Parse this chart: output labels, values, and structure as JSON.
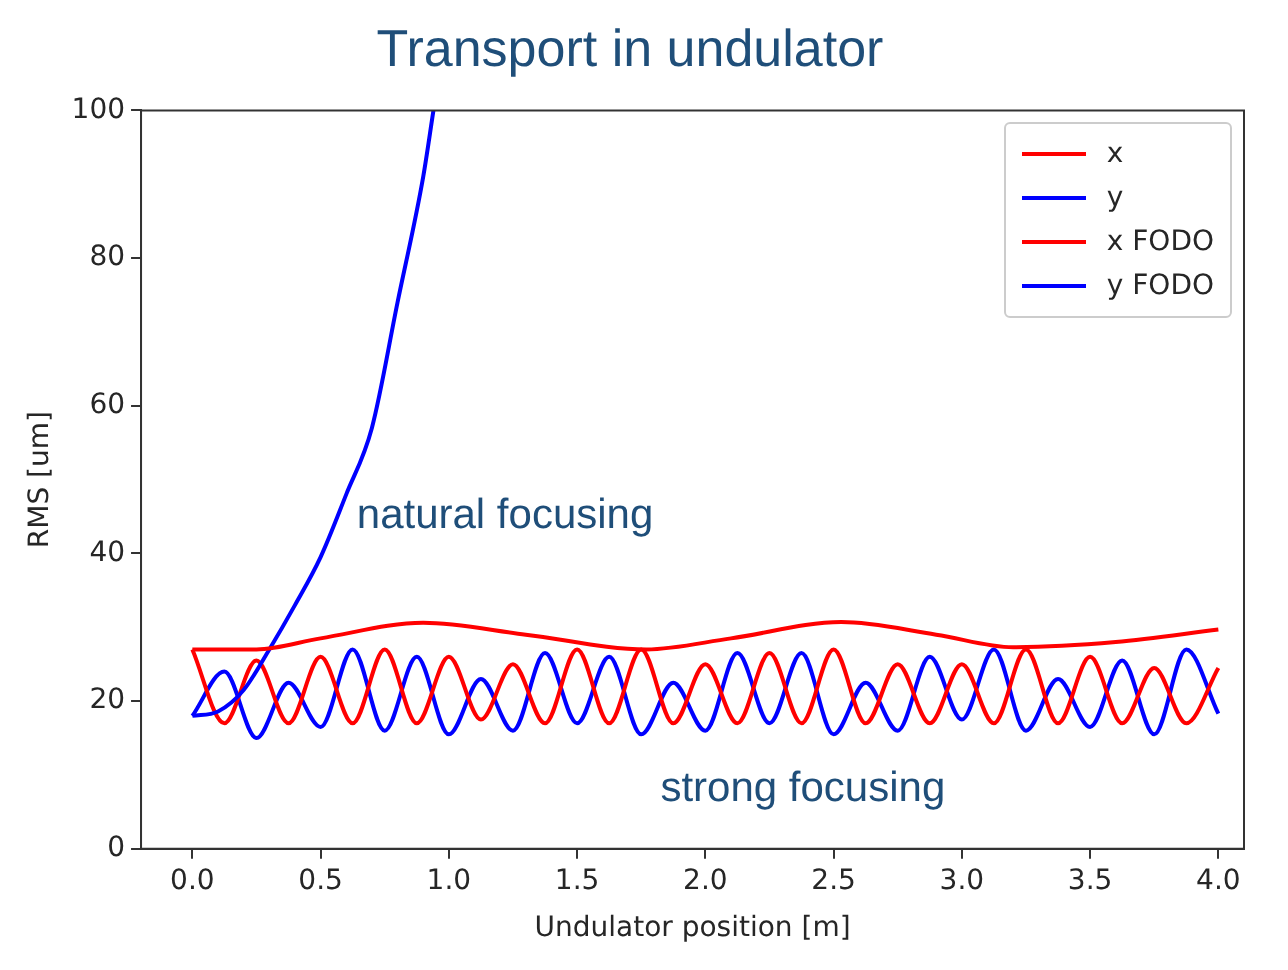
{
  "chart_data": {
    "type": "line",
    "title": "Transport in undulator",
    "xlabel": "Undulator position [m]",
    "ylabel": "RMS [um]",
    "xlim": [
      -0.2,
      4.1
    ],
    "xticks": [
      {
        "value": 0,
        "label": "0.0"
      },
      {
        "value": 0.5,
        "label": "0.5"
      },
      {
        "value": 1,
        "label": "1.0"
      },
      {
        "value": 1.5,
        "label": "1.5"
      },
      {
        "value": 2,
        "label": "2.0"
      },
      {
        "value": 2.5,
        "label": "2.5"
      },
      {
        "value": 3,
        "label": "3.0"
      },
      {
        "value": 3.5,
        "label": "3.5"
      },
      {
        "value": 4,
        "label": "4.0"
      }
    ],
    "ylim": [
      0,
      100
    ],
    "yticks": [
      0,
      20,
      40,
      60,
      80,
      100
    ],
    "grid": false,
    "legend": "top right",
    "marker": "none",
    "line_style": "solid",
    "annotations": [
      "natural focusing",
      "strong focusing"
    ],
    "series": [
      {
        "name": "x",
        "color": "#ff0000",
        "x": [
          0,
          0.25,
          0.5,
          0.9,
          1.3,
          1.77,
          2.1,
          2.53,
          2.9,
          3.2,
          3.6,
          4.0
        ],
        "values": [
          27,
          27,
          28.5,
          30.6,
          29,
          27,
          28.5,
          30.7,
          29,
          27.3,
          28,
          29.7
        ]
      },
      {
        "name": "y",
        "color": "#0000ff",
        "x": [
          0,
          0.1,
          0.2,
          0.3,
          0.4,
          0.5,
          0.6,
          0.7,
          0.8,
          0.9,
          0.94
        ],
        "values": [
          18,
          18.6,
          21.5,
          27,
          33,
          39.5,
          48,
          57,
          74,
          91,
          100
        ]
      },
      {
        "name": "x FODO",
        "color": "#ff0000",
        "x": [
          0,
          0.125,
          0.25,
          0.375,
          0.5,
          0.625,
          0.75,
          0.875,
          1,
          1.125,
          1.25,
          1.375,
          1.5,
          1.625,
          1.75,
          1.875,
          2,
          2.125,
          2.25,
          2.375,
          2.5,
          2.625,
          2.75,
          2.875,
          3,
          3.125,
          3.25,
          3.375,
          3.5,
          3.625,
          3.75,
          3.875,
          4
        ],
        "values": [
          27,
          17,
          25.5,
          17,
          26,
          17,
          27,
          17,
          26,
          17.5,
          25,
          17,
          27,
          17,
          27,
          17,
          25,
          17,
          26.5,
          17,
          27,
          17,
          25,
          17,
          25,
          17,
          27,
          17,
          26,
          17,
          24.5,
          17,
          24.5
        ]
      },
      {
        "name": "y FODO",
        "color": "#0000ff",
        "x": [
          0,
          0.125,
          0.25,
          0.375,
          0.5,
          0.625,
          0.75,
          0.875,
          1,
          1.125,
          1.25,
          1.375,
          1.5,
          1.625,
          1.75,
          1.875,
          2,
          2.125,
          2.25,
          2.375,
          2.5,
          2.625,
          2.75,
          2.875,
          3,
          3.125,
          3.25,
          3.375,
          3.5,
          3.625,
          3.75,
          3.875,
          4
        ],
        "values": [
          18,
          24,
          15,
          22.5,
          16.5,
          27,
          16,
          26,
          15.5,
          23,
          16,
          26.5,
          17,
          26,
          15.5,
          22.5,
          16,
          26.5,
          17,
          26.5,
          15.5,
          22.5,
          16,
          26,
          17.5,
          27,
          16,
          23,
          16.5,
          25.5,
          15.5,
          27,
          18.3
        ]
      }
    ]
  }
}
